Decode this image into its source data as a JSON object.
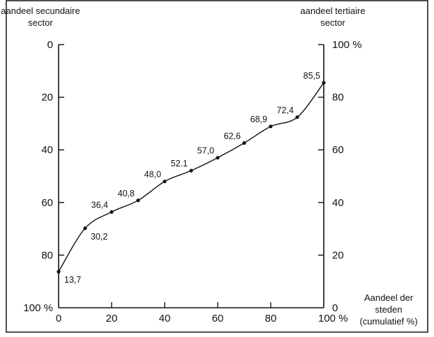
{
  "chart_data": {
    "type": "line",
    "left_axis_title": [
      "aandeel secundaire",
      "sector"
    ],
    "right_axis_title": [
      "aandeel tertiaire",
      "sector"
    ],
    "x_axis_title": [
      "Aandeel der",
      "steden",
      "(cumulatief %)"
    ],
    "x_range": [
      0,
      100
    ],
    "left_axis_range": [
      0,
      100
    ],
    "left_axis_reversed": true,
    "right_axis_range": [
      0,
      100
    ],
    "x_ticks": [
      {
        "value": 0,
        "label": "0"
      },
      {
        "value": 20,
        "label": "20"
      },
      {
        "value": 40,
        "label": "40"
      },
      {
        "value": 60,
        "label": "60"
      },
      {
        "value": 80,
        "label": "80"
      },
      {
        "value": 100,
        "label": "100 %"
      }
    ],
    "left_ticks": [
      {
        "value": 0,
        "label": "0"
      },
      {
        "value": 20,
        "label": "20"
      },
      {
        "value": 40,
        "label": "40"
      },
      {
        "value": 60,
        "label": "60"
      },
      {
        "value": 80,
        "label": "80"
      },
      {
        "value": 100,
        "label": "100 %"
      }
    ],
    "right_ticks": [
      {
        "value": 0,
        "label": "0"
      },
      {
        "value": 20,
        "label": "20"
      },
      {
        "value": 40,
        "label": "40"
      },
      {
        "value": 60,
        "label": "60"
      },
      {
        "value": 80,
        "label": "80"
      },
      {
        "value": 100,
        "label": "100 %"
      }
    ],
    "grid": false,
    "points": [
      {
        "x": 0,
        "y": 13.7,
        "label": "13,7"
      },
      {
        "x": 10,
        "y": 30.2,
        "label": "30,2"
      },
      {
        "x": 20,
        "y": 36.4,
        "label": "36,4"
      },
      {
        "x": 30,
        "y": 40.8,
        "label": "40,8"
      },
      {
        "x": 40,
        "y": 48.0,
        "label": "48,0"
      },
      {
        "x": 50,
        "y": 52.1,
        "label": "52.1"
      },
      {
        "x": 60,
        "y": 57.0,
        "label": "57,0"
      },
      {
        "x": 70,
        "y": 62.6,
        "label": "62,6"
      },
      {
        "x": 80,
        "y": 68.9,
        "label": "68,9"
      },
      {
        "x": 90,
        "y": 72.4,
        "label": "72,4"
      },
      {
        "x": 100,
        "y": 85.5,
        "label": "85,5"
      }
    ]
  }
}
